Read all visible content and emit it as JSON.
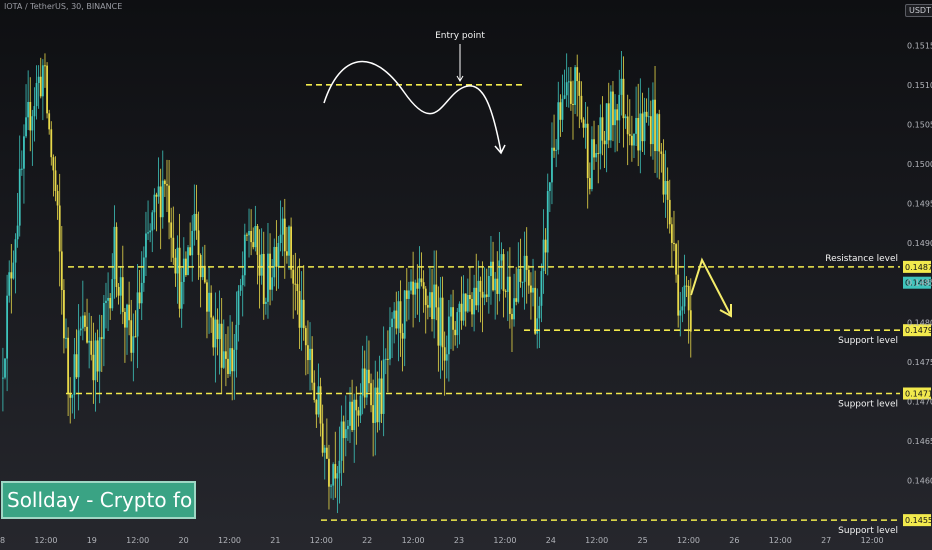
{
  "header": {
    "pair_label": "IOTA / TetherUS, 30, BINANCE",
    "currency": "USDT"
  },
  "watermark": {
    "text": "Sollday - Crypto for U"
  },
  "colors": {
    "up": "#3ec4bc",
    "down": "#e8d94a",
    "level": "#f2ea4d",
    "annotation": "#ffffff",
    "entry_arrow": "#f4ec6a"
  },
  "chart_data": {
    "type": "candlestick",
    "x_ticks": [
      "8",
      "12:00",
      "19",
      "12:00",
      "20",
      "12:00",
      "21",
      "12:00",
      "22",
      "12:00",
      "23",
      "12:00",
      "24",
      "12:00",
      "25",
      "12:00",
      "26",
      "12:00",
      "27",
      "12:00"
    ],
    "y_ticks": [
      0.146,
      0.1465,
      0.147,
      0.1475,
      0.148,
      0.1485,
      0.149,
      0.1495,
      0.15,
      0.1505,
      0.151,
      0.1515
    ],
    "ylim": [
      0.14535,
      0.15187
    ],
    "levels": [
      {
        "name": "Resistance level",
        "value": 0.1487,
        "tag": "0.1487"
      },
      {
        "name": "Support level",
        "value": 0.1479,
        "tag": "0.1479"
      },
      {
        "name": "Support level",
        "value": 0.1471,
        "tag": "0.1471"
      },
      {
        "name": "Support level",
        "value": 0.1455,
        "tag": "0.1455"
      }
    ],
    "last_price": {
      "value": 0.1485,
      "tag": "0.1485"
    },
    "entry_point": {
      "label": "Entry point",
      "value": 0.151
    },
    "candle_count": 328
  }
}
